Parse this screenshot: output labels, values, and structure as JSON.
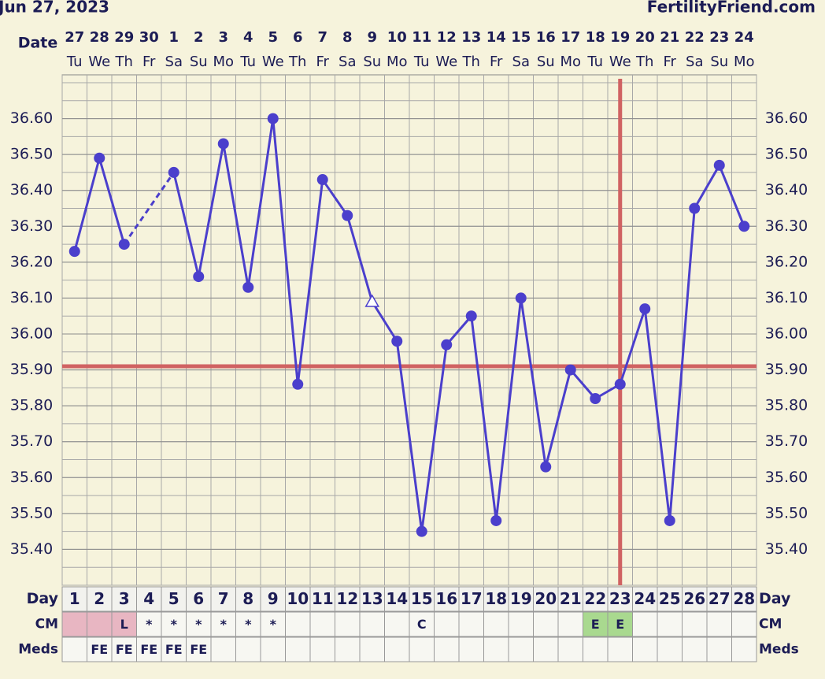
{
  "chart_data": {
    "type": "line",
    "title": "Jun 27, 2023",
    "source": "FertilityFriend.com",
    "date_label": "Date",
    "dates": [
      27,
      28,
      29,
      30,
      1,
      2,
      3,
      4,
      5,
      6,
      7,
      8,
      9,
      10,
      11,
      12,
      13,
      14,
      15,
      16,
      17,
      18,
      19,
      20,
      21,
      22,
      23,
      24
    ],
    "weekdays": [
      "Tu",
      "We",
      "Th",
      "Fr",
      "Sa",
      "Su",
      "Mo",
      "Tu",
      "We",
      "Th",
      "Fr",
      "Sa",
      "Su",
      "Mo",
      "Tu",
      "We",
      "Th",
      "Fr",
      "Sa",
      "Su",
      "Mo",
      "Tu",
      "We",
      "Th",
      "Fr",
      "Sa",
      "Su",
      "Mo"
    ],
    "day_label": "Day",
    "categories": [
      1,
      2,
      3,
      4,
      5,
      6,
      7,
      8,
      9,
      10,
      11,
      12,
      13,
      14,
      15,
      16,
      17,
      18,
      19,
      20,
      21,
      22,
      23,
      24,
      25,
      26,
      27,
      28
    ],
    "values": [
      36.23,
      36.49,
      36.25,
      null,
      36.45,
      36.16,
      36.53,
      36.13,
      36.6,
      35.86,
      36.43,
      36.33,
      36.09,
      35.98,
      35.45,
      35.97,
      36.05,
      35.48,
      36.1,
      35.63,
      35.9,
      35.82,
      35.86,
      36.07,
      35.48,
      36.35,
      36.47,
      36.3
    ],
    "color": "#4b3fcc",
    "open_triangle_index": 12,
    "bridge_gaps": true,
    "ylim": [
      35.3,
      36.7
    ],
    "yticks": [
      {
        "value": 35.4,
        "label": "35.40"
      },
      {
        "value": 35.5,
        "label": "35.50"
      },
      {
        "value": 35.6,
        "label": "35.60"
      },
      {
        "value": 35.7,
        "label": "35.70"
      },
      {
        "value": 35.8,
        "label": "35.80"
      },
      {
        "value": 35.9,
        "label": "35.90"
      },
      {
        "value": 36.0,
        "label": "36.00"
      },
      {
        "value": 36.1,
        "label": "36.10"
      },
      {
        "value": 36.2,
        "label": "36.20"
      },
      {
        "value": 36.3,
        "label": "36.30"
      },
      {
        "value": 36.4,
        "label": "36.40"
      },
      {
        "value": 36.5,
        "label": "36.50"
      },
      {
        "value": 36.6,
        "label": "36.60"
      }
    ],
    "grid": true,
    "coverline": 35.91,
    "ovulation_day": 23,
    "reference_color": "#d06262",
    "cm_label": "CM",
    "cm": [
      null,
      null,
      "L",
      "*",
      "*",
      "*",
      "*",
      "*",
      "*",
      null,
      null,
      null,
      null,
      null,
      "C",
      null,
      null,
      null,
      null,
      null,
      null,
      "E",
      "E",
      null,
      null,
      null,
      null,
      null
    ],
    "cm_cell_colors": [
      "#e8b6c2",
      "#e8b6c2",
      "#e8b6c2",
      null,
      null,
      null,
      null,
      null,
      null,
      null,
      null,
      null,
      null,
      null,
      null,
      null,
      null,
      null,
      null,
      null,
      null,
      "#a9d98f",
      "#a9d98f",
      null,
      null,
      null,
      null,
      null
    ],
    "meds_label": "Meds",
    "meds": [
      null,
      "FE",
      "FE",
      "FE",
      "FE",
      "FE",
      null,
      null,
      null,
      null,
      null,
      null,
      null,
      null,
      null,
      null,
      null,
      null,
      null,
      null,
      null,
      null,
      null,
      null,
      null,
      null,
      null,
      null
    ]
  }
}
